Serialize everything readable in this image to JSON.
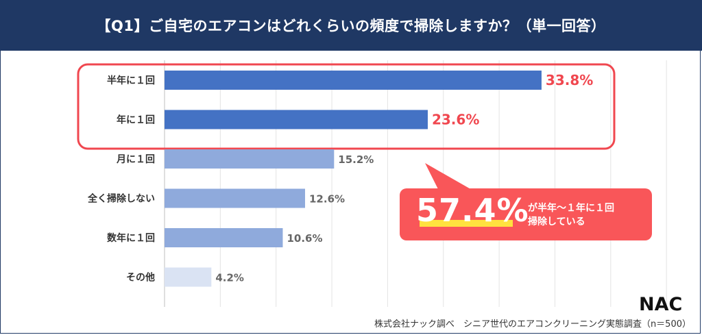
{
  "title": "【Q1】ご自宅のエアコンはどれくらいの頻度で掃除しますか？（単一回答）",
  "chart_data": {
    "type": "bar",
    "orientation": "horizontal",
    "categories": [
      "半年に１回",
      "年に１回",
      "月に１回",
      "全く掃除しない",
      "数年に１回",
      "その他"
    ],
    "values": [
      33.8,
      23.6,
      15.2,
      12.6,
      10.6,
      4.2
    ],
    "value_labels": [
      "33.8%",
      "23.6%",
      "15.2%",
      "12.6%",
      "10.6%",
      "4.2%"
    ],
    "bar_colors": [
      "#4472c4",
      "#4472c4",
      "#8faadc",
      "#8faadc",
      "#8faadc",
      "#dae3f3"
    ],
    "highlight_color": "#f0474f",
    "grid": true,
    "xlim": [
      0,
      45
    ]
  },
  "callout": {
    "big": "57.4%",
    "line1": "が半年〜１年に１回",
    "line2": "掃除している",
    "color": "#f95659",
    "underline_color": "#ffe23f"
  },
  "footer": "株式会社ナック調べ　シニア世代のエアコンクリーニング実態調査（n＝500）",
  "logo_text": "NAC"
}
